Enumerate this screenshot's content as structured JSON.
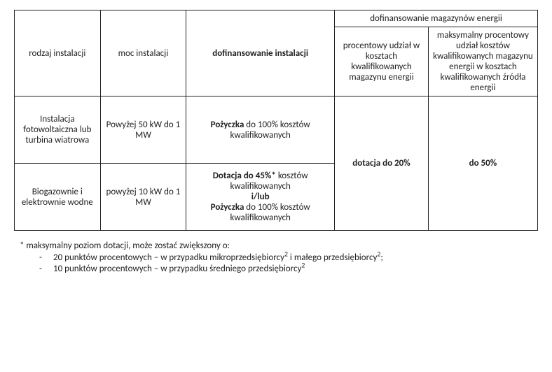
{
  "table": {
    "header": {
      "col1": "rodzaj instalacji",
      "col2": "moc instalacji",
      "col3": "dofinansowanie instalacji",
      "span45": "dofinansowanie magazynów energii",
      "col4": "procentowy udział w kosztach kwalifikowanych magazynu energii",
      "col5": "maksymalny procentowy udział kosztów kwalifikowanych magazynu energii w kosztach kwalifikowanych źródła energii"
    },
    "rows": [
      {
        "c1": "Instalacja fotowoltaiczna lub turbina wiatrowa",
        "c2": "Powyżej 50 kW do 1 MW",
        "c3_bold1": "Pożyczka",
        "c3_rest1": " do 100% kosztów kwalifikowanych"
      },
      {
        "c1": "Biogazownie i elektrownie wodne",
        "c2": "powyżej 10 kW do 1 MW",
        "c3_bold1": "Dotacja do 45%*",
        "c3_rest1": " kosztów kwalifikowanych",
        "c3_mid": "i/lub",
        "c3_bold2": "Pożyczka",
        "c3_rest2": " do 100% kosztów kwalifikowanych"
      }
    ],
    "merge": {
      "c4_bold": "dotacja do 20%",
      "c5_bold": "do 50%"
    }
  },
  "footnote": {
    "lead": "* maksymalny poziom dotacji, może zostać zwiększony o:",
    "items": [
      {
        "text_before": "20 punktów procentowych – w przypadku mikroprzedsiębiorcy",
        "sup1": "2",
        "text_mid": " i małego przedsiębiorcy",
        "sup2": "2",
        "tail": ";"
      },
      {
        "text_before": "10 punktów procentowych – w przypadku średniego przedsiębiorcy",
        "sup1": "2",
        "text_mid": "",
        "sup2": "",
        "tail": ""
      }
    ]
  },
  "style": {
    "font_family": "Calibri",
    "font_size_pt": 10,
    "border_color": "#222222",
    "text_color": "#222222",
    "background_color": "#ffffff"
  }
}
